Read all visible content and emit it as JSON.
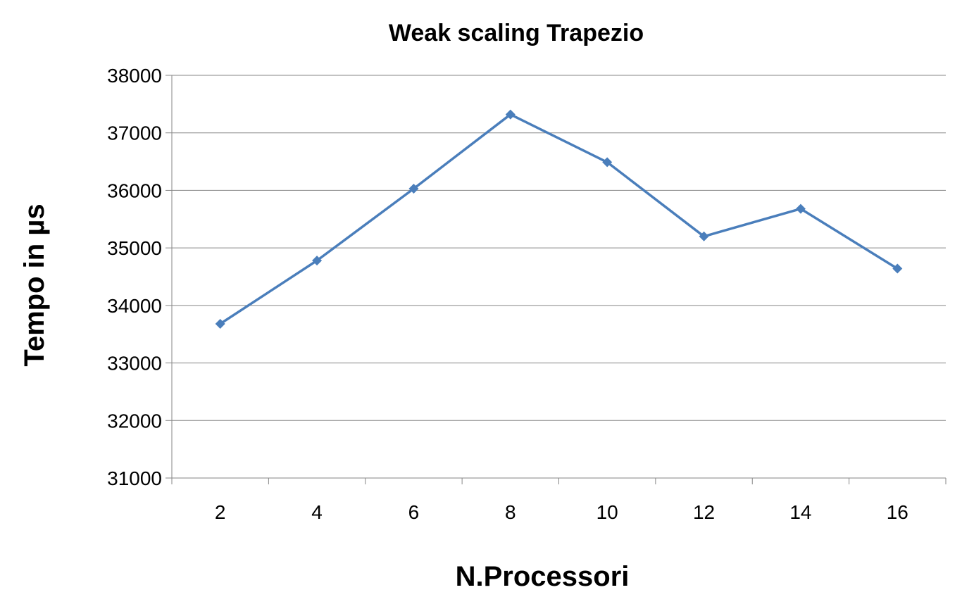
{
  "chart_data": {
    "type": "line",
    "title": "Weak scaling Trapezio",
    "xlabel": "N.Processori",
    "ylabel": "Tempo in µs",
    "categories": [
      "2",
      "4",
      "6",
      "8",
      "10",
      "12",
      "14",
      "16"
    ],
    "series": [
      {
        "values": [
          33680,
          34780,
          36030,
          37320,
          36490,
          35200,
          35680,
          34640
        ],
        "color": "#4a7ebb",
        "marker": "diamond"
      }
    ],
    "ylim": [
      31000,
      38000
    ],
    "yticks": [
      "31000",
      "32000",
      "33000",
      "34000",
      "35000",
      "36000",
      "37000",
      "38000"
    ],
    "grid": true,
    "legend": "none"
  }
}
